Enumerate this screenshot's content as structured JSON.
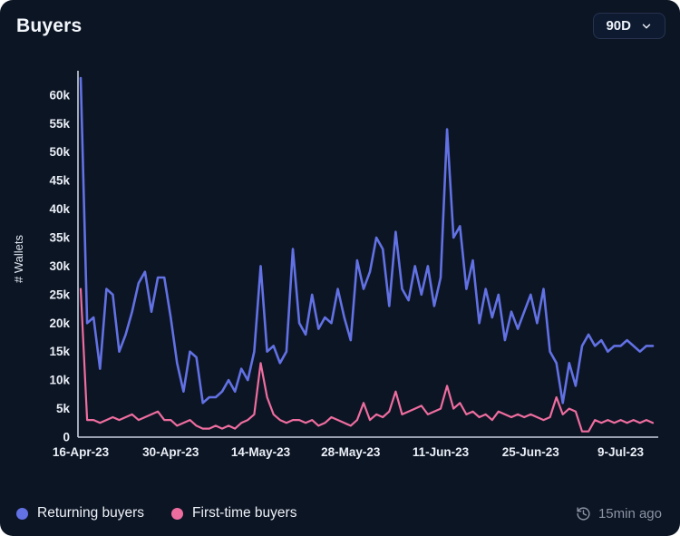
{
  "header": {
    "title": "Buyers",
    "range_selector": {
      "value": "90D"
    }
  },
  "legend": {
    "items": [
      {
        "label": "Returning buyers",
        "color": "#6271e3"
      },
      {
        "label": "First-time buyers",
        "color": "#ee6d9f"
      }
    ],
    "updated": "15min ago"
  },
  "colors": {
    "background": "#0c1524",
    "axis": "#c9d1e0",
    "tick_text": "#eaeef6",
    "returning": "#6271e3",
    "first_time": "#ee6d9f",
    "muted_text": "#8b93a4"
  },
  "chart_data": {
    "type": "line",
    "title": "Buyers",
    "xlabel": "",
    "ylabel": "# Wallets",
    "ylim": [
      0,
      63000
    ],
    "grid": false,
    "legend_position": "bottom",
    "yticks": [
      0,
      5000,
      10000,
      15000,
      20000,
      25000,
      30000,
      35000,
      40000,
      45000,
      50000,
      55000,
      60000
    ],
    "ytick_labels": [
      "0",
      "5k",
      "10k",
      "15k",
      "20k",
      "25k",
      "30k",
      "35k",
      "40k",
      "45k",
      "50k",
      "55k",
      "60k"
    ],
    "x_unit": "day",
    "xtick_indices": [
      0,
      14,
      28,
      42,
      56,
      70,
      84
    ],
    "xtick_labels": [
      "16-Apr-23",
      "30-Apr-23",
      "14-May-23",
      "28-May-23",
      "11-Jun-23",
      "25-Jun-23",
      "9-Jul-23"
    ],
    "series": [
      {
        "name": "Returning buyers",
        "color": "#6271e3",
        "values": [
          63000,
          20000,
          21000,
          12000,
          26000,
          25000,
          15000,
          18000,
          22000,
          27000,
          29000,
          22000,
          28000,
          28000,
          21000,
          13000,
          8000,
          15000,
          14000,
          6000,
          7000,
          7000,
          8000,
          10000,
          8000,
          12000,
          10000,
          15000,
          30000,
          15000,
          16000,
          13000,
          15000,
          33000,
          20000,
          18000,
          25000,
          19000,
          21000,
          20000,
          26000,
          21000,
          17000,
          31000,
          26000,
          29000,
          35000,
          33000,
          23000,
          36000,
          26000,
          24000,
          30000,
          25000,
          30000,
          23000,
          28000,
          54000,
          35000,
          37000,
          26000,
          31000,
          20000,
          26000,
          21000,
          25000,
          17000,
          22000,
          19000,
          22000,
          25000,
          20000,
          26000,
          15000,
          13000,
          6000,
          13000,
          9000,
          16000,
          18000,
          16000,
          17000,
          15000,
          16000,
          16000,
          17000,
          16000,
          15000,
          16000,
          16000
        ]
      },
      {
        "name": "First-time buyers",
        "color": "#ee6d9f",
        "values": [
          26000,
          3000,
          3000,
          2500,
          3000,
          3500,
          3000,
          3500,
          4000,
          3000,
          3500,
          4000,
          4500,
          3000,
          3000,
          2000,
          2500,
          3000,
          2000,
          1500,
          1500,
          2000,
          1500,
          2000,
          1500,
          2500,
          3000,
          4000,
          13000,
          7000,
          4000,
          3000,
          2500,
          3000,
          3000,
          2500,
          3000,
          2000,
          2500,
          3500,
          3000,
          2500,
          2000,
          3000,
          6000,
          3000,
          4000,
          3500,
          4500,
          8000,
          4000,
          4500,
          5000,
          5500,
          4000,
          4500,
          5000,
          9000,
          5000,
          6000,
          4000,
          4500,
          3500,
          4000,
          3000,
          4500,
          4000,
          3500,
          4000,
          3500,
          4000,
          3500,
          3000,
          3500,
          7000,
          4000,
          5000,
          4500,
          1000,
          1000,
          3000,
          2500,
          3000,
          2500,
          3000,
          2500,
          3000,
          2500,
          3000,
          2500
        ]
      }
    ]
  }
}
